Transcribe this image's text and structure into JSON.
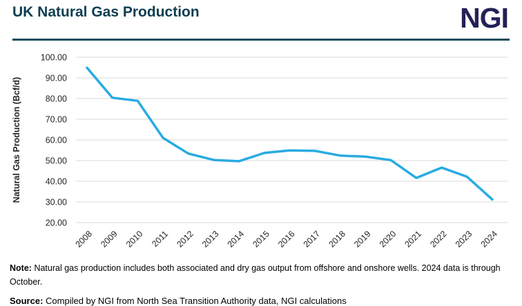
{
  "header": {
    "title": "UK Natural Gas Production",
    "logo": "NGI"
  },
  "colors": {
    "title": "#0e3e50",
    "divider": "#0f4c5c",
    "logo": "#232158",
    "line": "#29abe2",
    "gridline": "#d9d9d9",
    "axis_text": "#262626"
  },
  "chart_data": {
    "type": "line",
    "title": "UK Natural Gas Production",
    "xlabel": "",
    "ylabel": "Natural Gas Production (Bcf/d)",
    "categories": [
      "2008",
      "2009",
      "2010",
      "2011",
      "2012",
      "2013",
      "2014",
      "2015",
      "2016",
      "2017",
      "2018",
      "2019",
      "2020",
      "2021",
      "2022",
      "2023",
      "2024"
    ],
    "values": [
      94.9,
      80.4,
      78.9,
      61.0,
      53.4,
      50.3,
      49.7,
      53.7,
      54.9,
      54.7,
      52.4,
      51.9,
      50.2,
      41.6,
      46.6,
      42.2,
      31.2
    ],
    "ylim": [
      20,
      100
    ],
    "y_ticks": [
      "100.00",
      "90.00",
      "80.00",
      "70.00",
      "60.00",
      "50.00",
      "40.00",
      "30.00",
      "20.00"
    ],
    "y_tick_values": [
      100,
      90,
      80,
      70,
      60,
      50,
      40,
      30,
      20
    ],
    "grid": "horizontal",
    "legend": "none",
    "x_label_rotation": 45
  },
  "footer": {
    "note_label": "Note:",
    "note_text": "Natural gas production includes both associated and dry gas output from offshore and onshore wells. 2024 data is through October.",
    "source_label": "Source:",
    "source_text": "Compiled by NGI from North Sea Transition Authority data, NGI calculations"
  }
}
